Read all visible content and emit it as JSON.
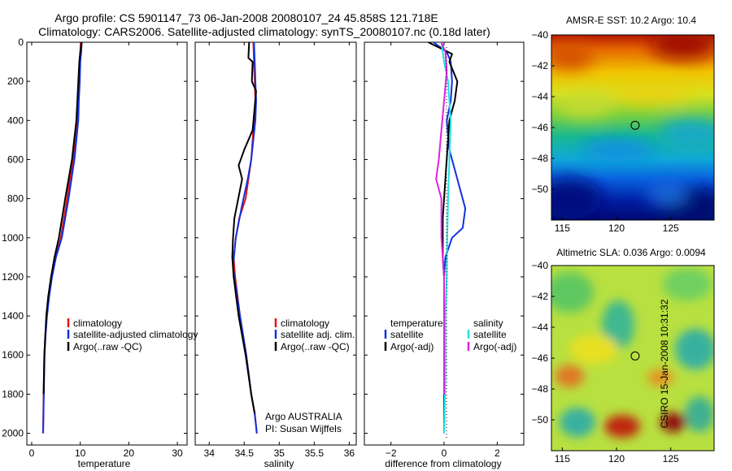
{
  "header": {
    "line1": "Argo profile: CS 5901147_73 06-Jan-2008 20080107_24 45.858S 121.718E",
    "line2": "Climatology: CARS2006. Satellite-adjusted climatology: synTS_20080107.nc (0.18d later)"
  },
  "side_caption": "CSIRO 15-Jan-2008 10:31:32",
  "panel2_note": [
    "Argo AUSTRALIA",
    "PI: Susan Wijffels"
  ],
  "colors": {
    "climatology": "#e8140c",
    "satellite_adjusted": "#1230e0",
    "argo": "#000000",
    "temp_diff_satellite": "#1230e0",
    "temp_diff_argo": "#000000",
    "sal_diff_satellite": "#22e0e0",
    "sal_diff_argo": "#e020e0"
  },
  "chart_data": [
    {
      "type": "line",
      "xlabel": "temperature",
      "ylabel": "",
      "xlim": [
        -1,
        32
      ],
      "ylim": [
        2060,
        0
      ],
      "xticks": [
        0,
        10,
        20,
        30
      ],
      "yticks": [
        0,
        200,
        400,
        600,
        800,
        1000,
        1200,
        1400,
        1600,
        1800,
        2000
      ],
      "legend": {
        "placement": "lower-right",
        "entries": [
          "climatology",
          "satellite-adjusted climatology",
          "Argo(..raw -QC)"
        ]
      },
      "series": [
        {
          "name": "climatology",
          "color": "#e8140c",
          "x": [
            10.1,
            10.0,
            9.9,
            9.7,
            9.5,
            9.3,
            8.5,
            7.3,
            6.0,
            4.9,
            4.1,
            3.5,
            3.1,
            2.8,
            2.6,
            2.45,
            2.35
          ],
          "y": [
            0,
            50,
            100,
            200,
            300,
            400,
            600,
            800,
            1000,
            1100,
            1200,
            1300,
            1400,
            1500,
            1600,
            1800,
            2000
          ]
        },
        {
          "name": "satellite-adjusted climatology",
          "color": "#1230e0",
          "x": [
            10.3,
            10.2,
            10.0,
            9.9,
            9.7,
            9.6,
            8.8,
            7.6,
            6.2,
            5.0,
            4.2,
            3.6,
            3.15,
            2.85,
            2.65,
            2.5,
            2.35
          ],
          "y": [
            0,
            50,
            100,
            200,
            300,
            400,
            600,
            800,
            1000,
            1100,
            1200,
            1300,
            1400,
            1500,
            1600,
            1800,
            2000
          ]
        },
        {
          "name": "Argo(..raw -QC)",
          "color": "#000000",
          "x": [
            10.3,
            10.0,
            9.8,
            9.6,
            9.4,
            9.2,
            8.3,
            6.9,
            5.6,
            4.7,
            4.0,
            3.4,
            3.0,
            2.8,
            2.6,
            2.45
          ],
          "y": [
            0,
            50,
            100,
            200,
            300,
            400,
            600,
            800,
            1000,
            1100,
            1200,
            1300,
            1400,
            1500,
            1600,
            1800
          ]
        }
      ]
    },
    {
      "type": "line",
      "xlabel": "salinity",
      "ylabel": "",
      "xlim": [
        33.8,
        36.1
      ],
      "ylim": [
        2060,
        0
      ],
      "xticks": [
        34,
        34.5,
        35,
        35.5,
        36
      ],
      "yticks": [
        0,
        200,
        400,
        600,
        800,
        1000,
        1200,
        1400,
        1600,
        1800,
        2000
      ],
      "legend": {
        "placement": "lower-right",
        "entries": [
          "climatology",
          "satellite adj. clim.",
          "Argo(..raw -QC)"
        ]
      },
      "series": [
        {
          "name": "climatology",
          "color": "#e8140c",
          "x": [
            34.63,
            34.64,
            34.65,
            34.66,
            34.64,
            34.6,
            34.52,
            34.43,
            34.38,
            34.35,
            34.37,
            34.44,
            34.53,
            34.6,
            34.65,
            34.68
          ],
          "y": [
            0,
            100,
            200,
            300,
            400,
            600,
            800,
            900,
            1000,
            1100,
            1200,
            1400,
            1600,
            1800,
            1900,
            2000
          ]
        },
        {
          "name": "satellite adj. clim.",
          "color": "#1230e0",
          "x": [
            34.64,
            34.65,
            34.66,
            34.67,
            34.66,
            34.6,
            34.55,
            34.46,
            34.38,
            34.34,
            34.36,
            34.44,
            34.53,
            34.6,
            34.65,
            34.68
          ],
          "y": [
            0,
            100,
            200,
            300,
            400,
            600,
            700,
            850,
            1000,
            1150,
            1200,
            1400,
            1600,
            1800,
            1900,
            2000
          ]
        },
        {
          "name": "Argo(..raw -QC)",
          "color": "#000000",
          "x": [
            34.57,
            34.56,
            34.62,
            34.61,
            34.67,
            34.62,
            34.5,
            34.42,
            34.47,
            34.36,
            34.34,
            34.33,
            34.35,
            34.42,
            34.52,
            34.6,
            34.65
          ],
          "y": [
            0,
            80,
            100,
            200,
            250,
            450,
            550,
            630,
            700,
            900,
            1000,
            1100,
            1200,
            1400,
            1600,
            1800,
            1900
          ]
        }
      ]
    },
    {
      "type": "line",
      "xlabel": "difference from climatology",
      "ylabel": "",
      "xlim": [
        -3,
        3
      ],
      "ylim": [
        2060,
        0
      ],
      "xticks": [
        -2,
        0,
        2
      ],
      "yticks": [
        0,
        200,
        400,
        600,
        800,
        1000,
        1200,
        1400,
        1600,
        1800,
        2000
      ],
      "legend": {
        "placement": "lower-center",
        "groups": [
          {
            "heading": "temperature",
            "entries": [
              "satellite",
              "Argo(-adj)"
            ]
          },
          {
            "heading": "salinity",
            "entries": [
              "satellite",
              "Argo(-adj)"
            ]
          }
        ]
      },
      "series": [
        {
          "name": "satellite",
          "group": "temperature",
          "color": "#1230e0",
          "x": [
            -0.4,
            0.1,
            0.25,
            0.3,
            0.25,
            0.1,
            0.2,
            0.5,
            0.8,
            0.7,
            0.3,
            0.05,
            0.0,
            0.0,
            0.0,
            0.0
          ],
          "y": [
            0,
            50,
            100,
            200,
            300,
            400,
            550,
            700,
            850,
            950,
            1000,
            1100,
            1200,
            1400,
            1700,
            2000
          ]
        },
        {
          "name": "Argo(-adj)",
          "group": "temperature",
          "color": "#000000",
          "x": [
            -0.6,
            0.3,
            0.2,
            0.5,
            0.4,
            0.2,
            0.15,
            0.05,
            -0.05,
            -0.05,
            0.0,
            0.0,
            0.0,
            0.0
          ],
          "y": [
            0,
            60,
            100,
            200,
            300,
            400,
            500,
            700,
            900,
            1100,
            1200,
            1400,
            1600,
            1800
          ]
        },
        {
          "name": "satellite",
          "group": "salinity",
          "color": "#22e0e0",
          "x": [
            -0.1,
            0.0,
            0.15,
            0.2,
            0.25,
            0.2,
            0.15,
            0.12,
            0.1,
            0.05,
            0.05,
            0.0
          ],
          "y": [
            0,
            100,
            200,
            300,
            400,
            600,
            800,
            1000,
            1200,
            1400,
            1700,
            2000
          ]
        },
        {
          "name": "Argo(-adj)",
          "group": "salinity",
          "color": "#e020e0",
          "x": [
            -0.1,
            0.05,
            0.1,
            0.0,
            -0.1,
            -0.2,
            -0.3,
            -0.1,
            -0.1,
            -0.05,
            0.0,
            0.0,
            0.0
          ],
          "y": [
            0,
            50,
            150,
            300,
            450,
            600,
            700,
            800,
            1000,
            1100,
            1200,
            1400,
            1800
          ]
        }
      ]
    },
    {
      "type": "heatmap",
      "title": "AMSR-E SST: 10.2  Argo: 10.4",
      "xlim": [
        114,
        129
      ],
      "ylim": [
        -52,
        -40
      ],
      "xticks": [
        115,
        120,
        125
      ],
      "yticks": [
        -40,
        -42,
        -44,
        -46,
        -48,
        -50
      ],
      "marker": {
        "lon": 121.718,
        "lat": -45.858
      }
    },
    {
      "type": "heatmap",
      "title": "Altimetric SLA: 0.036  Argo: 0.0094",
      "xlim": [
        114,
        129
      ],
      "ylim": [
        -52,
        -40
      ],
      "xticks": [
        115,
        120,
        125
      ],
      "yticks": [
        -40,
        -42,
        -44,
        -46,
        -48,
        -50
      ],
      "marker": {
        "lon": 121.718,
        "lat": -45.858
      }
    }
  ]
}
